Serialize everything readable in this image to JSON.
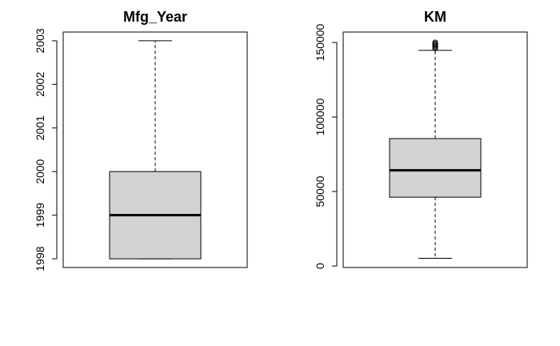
{
  "chart_data": [
    {
      "type": "boxplot",
      "title": "Mfg_Year",
      "ylim": [
        1997.8,
        2003.2
      ],
      "yticks": [
        1998,
        1999,
        2000,
        2001,
        2002,
        2003
      ],
      "min": 1998,
      "q1": 1998,
      "median": 1999,
      "q3": 2000,
      "max": 2003,
      "outliers": []
    },
    {
      "type": "boxplot",
      "title": "KM",
      "ylim": [
        -1000,
        157000
      ],
      "yticks": [
        0,
        50000,
        100000,
        150000
      ],
      "min": 5200,
      "q1": 46200,
      "median": 64200,
      "q3": 85500,
      "max": 144700,
      "outliers": [
        146000,
        147000,
        147800,
        148500,
        149200,
        150000
      ]
    }
  ],
  "colors": {
    "box_fill": "#d3d3d3",
    "stroke": "#000000"
  }
}
